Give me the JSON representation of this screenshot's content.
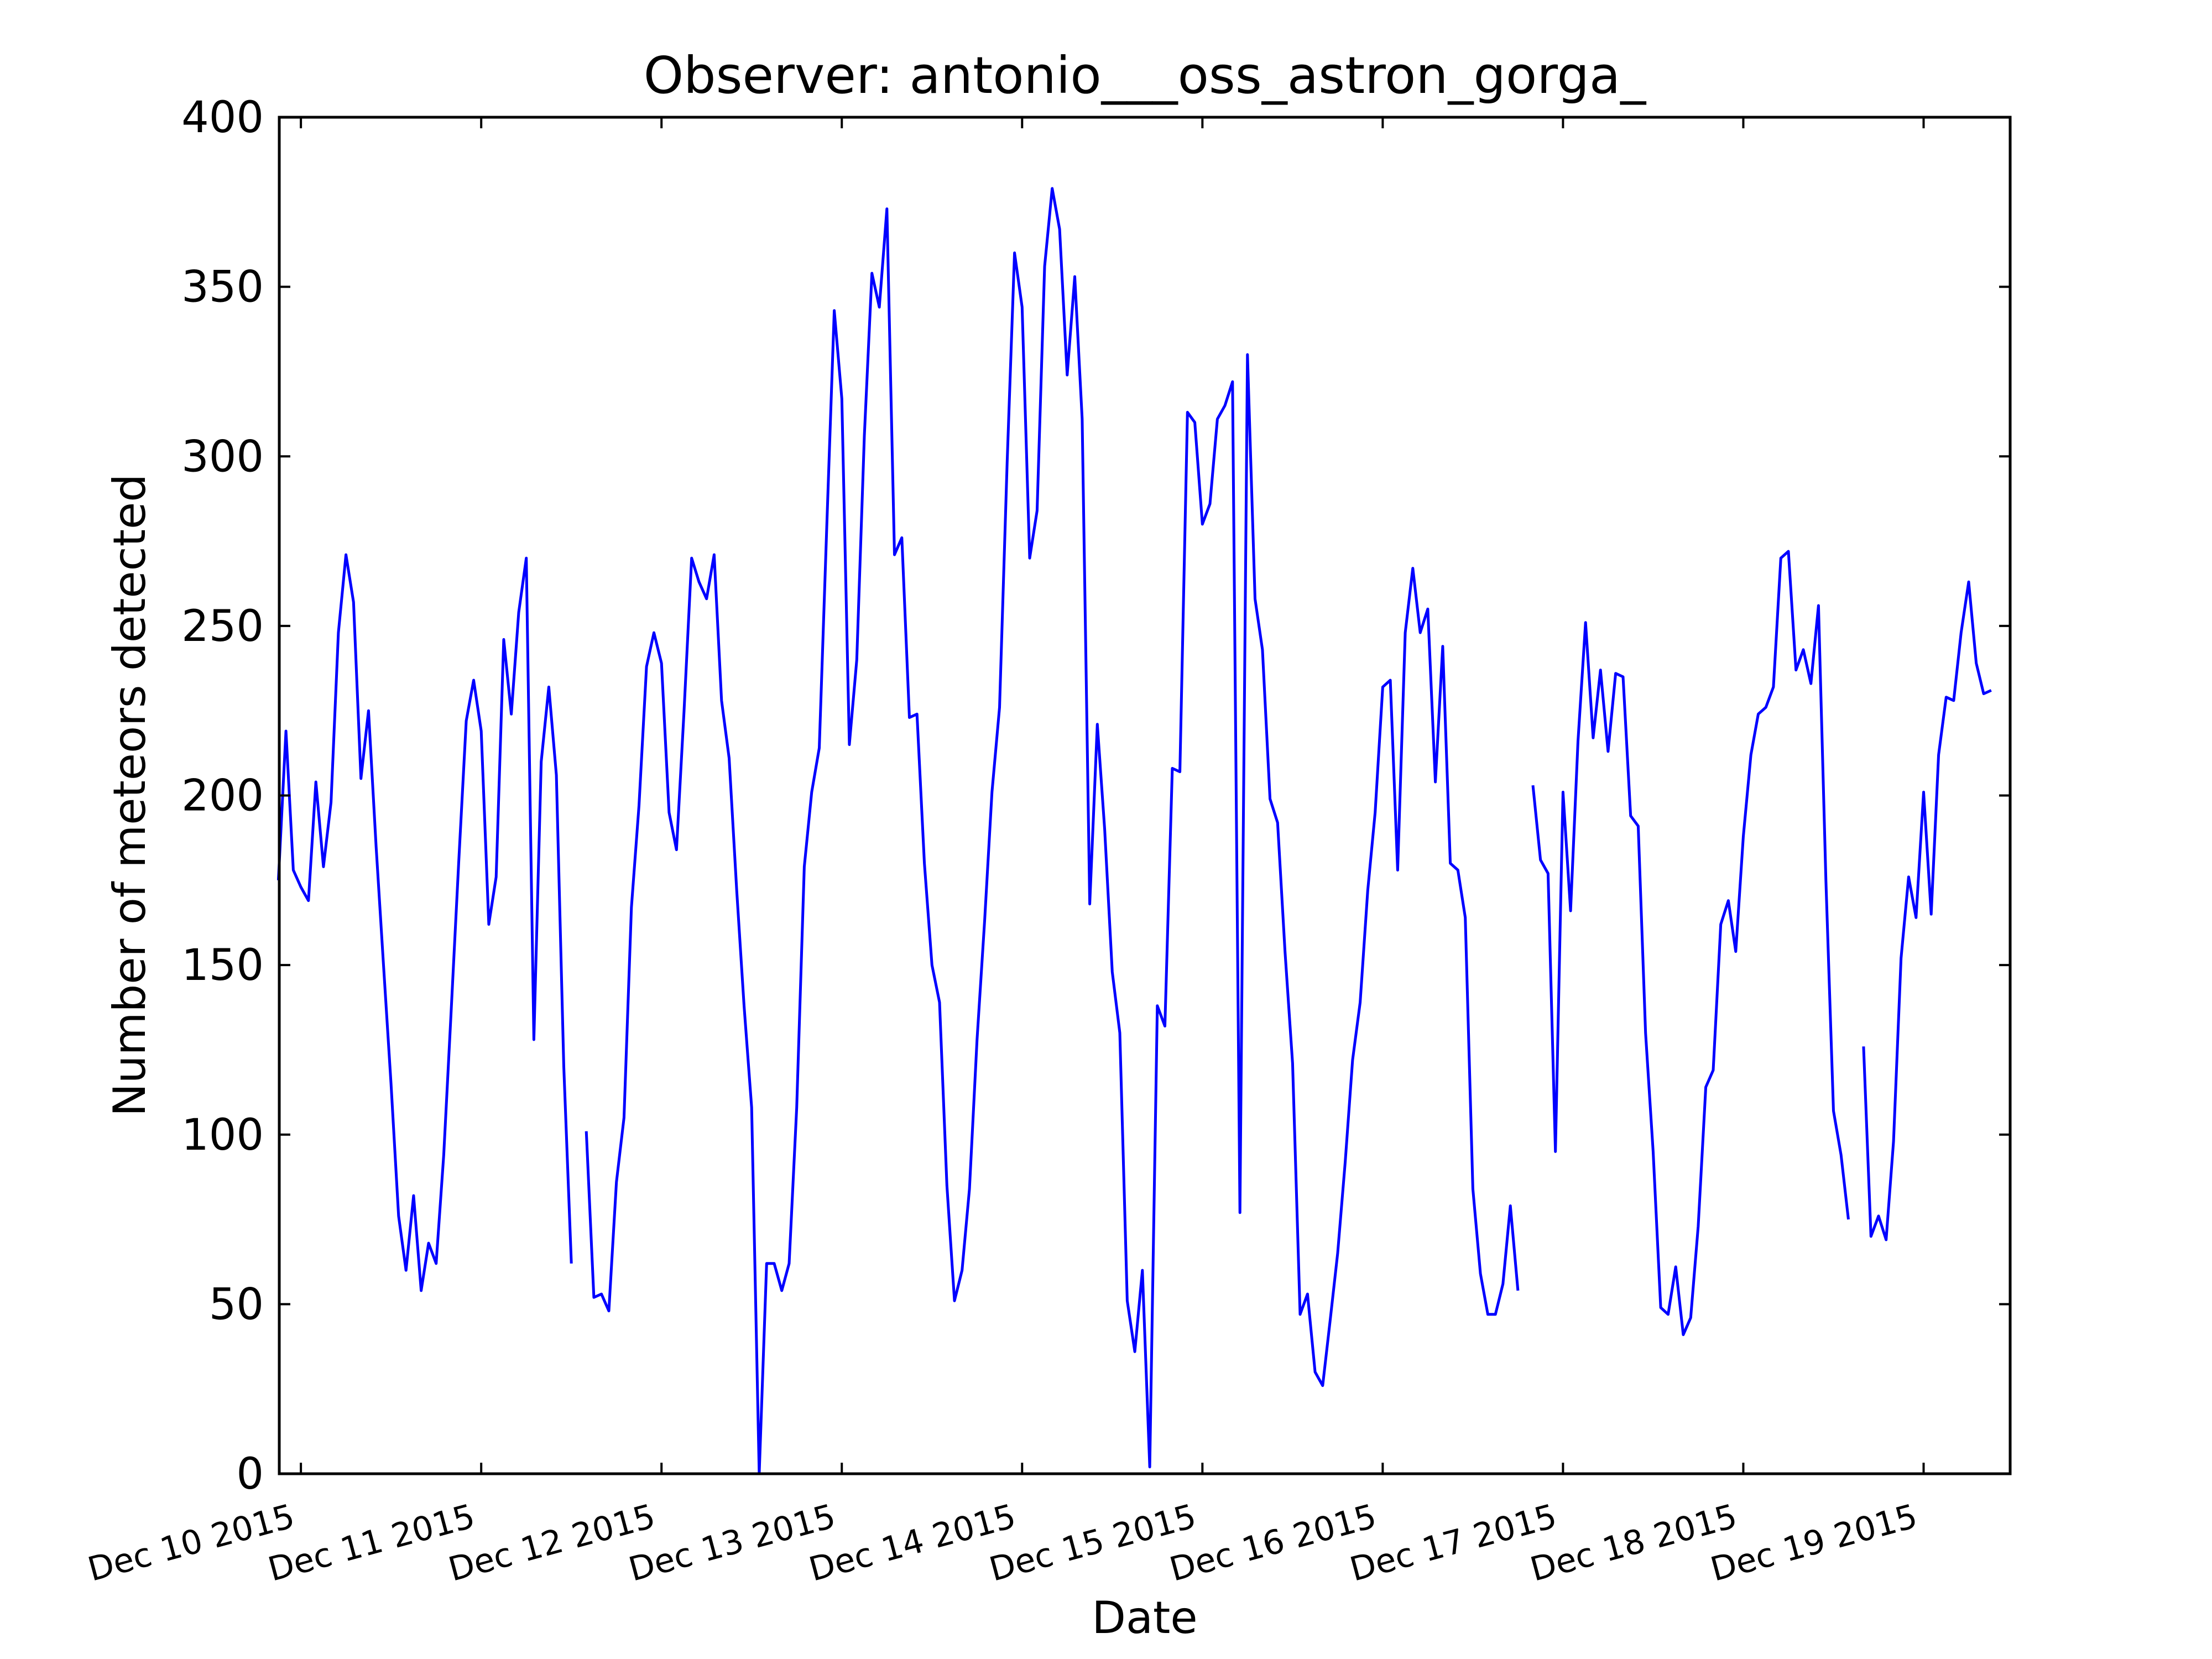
{
  "chart_data": {
    "type": "line",
    "title": "Observer: antonio___oss_astron_gorga_",
    "xlabel": "Date",
    "ylabel": "Number of meteors detected",
    "x_start": "2015-12-10",
    "xlim_days": [
      -0.12,
      9.48
    ],
    "ylim": [
      0,
      400
    ],
    "yticks": [
      0,
      50,
      100,
      150,
      200,
      250,
      300,
      350,
      400
    ],
    "xticks": [
      {
        "day": 0,
        "label": "Dec 10 2015"
      },
      {
        "day": 1,
        "label": "Dec 11 2015"
      },
      {
        "day": 2,
        "label": "Dec 12 2015"
      },
      {
        "day": 3,
        "label": "Dec 13 2015"
      },
      {
        "day": 4,
        "label": "Dec 14 2015"
      },
      {
        "day": 5,
        "label": "Dec 15 2015"
      },
      {
        "day": 6,
        "label": "Dec 16 2015"
      },
      {
        "day": 7,
        "label": "Dec 17 2015"
      },
      {
        "day": 8,
        "label": "Dec 18 2015"
      },
      {
        "day": 9,
        "label": "Dec 19 2015"
      }
    ],
    "grid": false,
    "line_color": "#0000ff",
    "series": [
      {
        "name": "meteors",
        "segments": [
          [
            [
              -0.125,
              175
            ],
            [
              -0.083,
              219
            ],
            [
              -0.042,
              178
            ],
            [
              0.0,
              173
            ],
            [
              0.042,
              169
            ],
            [
              0.083,
              204
            ],
            [
              0.125,
              179
            ],
            [
              0.167,
              198
            ],
            [
              0.208,
              248
            ],
            [
              0.25,
              271
            ],
            [
              0.292,
              257
            ],
            [
              0.333,
              205
            ],
            [
              0.375,
              225
            ],
            [
              0.417,
              185
            ],
            [
              0.458,
              150
            ],
            [
              0.5,
              115
            ],
            [
              0.542,
              76
            ],
            [
              0.583,
              60
            ],
            [
              0.625,
              82
            ],
            [
              0.667,
              54
            ],
            [
              0.708,
              68
            ],
            [
              0.75,
              62
            ],
            [
              0.792,
              94
            ],
            [
              0.833,
              136
            ],
            [
              0.875,
              180
            ],
            [
              0.917,
              222
            ],
            [
              0.958,
              234
            ],
            [
              1.0,
              219
            ],
            [
              1.042,
              162
            ],
            [
              1.083,
              176
            ],
            [
              1.125,
              246
            ],
            [
              1.167,
              224
            ],
            [
              1.208,
              254
            ],
            [
              1.25,
              270
            ],
            [
              1.292,
              128
            ],
            [
              1.333,
              210
            ],
            [
              1.375,
              232
            ],
            [
              1.417,
              206
            ],
            [
              1.458,
              120
            ],
            [
              1.5,
              62
            ]
          ],
          [
            [
              1.583,
              101
            ],
            [
              1.625,
              52
            ],
            [
              1.667,
              53
            ],
            [
              1.708,
              48
            ],
            [
              1.75,
              86
            ],
            [
              1.792,
              105
            ],
            [
              1.833,
              167
            ],
            [
              1.875,
              197
            ],
            [
              1.917,
              238
            ],
            [
              1.958,
              248
            ],
            [
              2.0,
              239
            ],
            [
              2.042,
              195
            ],
            [
              2.083,
              184
            ],
            [
              2.125,
              225
            ],
            [
              2.167,
              270
            ],
            [
              2.208,
              263
            ],
            [
              2.25,
              258
            ],
            [
              2.292,
              271
            ],
            [
              2.333,
              228
            ],
            [
              2.375,
              211
            ],
            [
              2.417,
              172
            ],
            [
              2.458,
              138
            ],
            [
              2.5,
              108
            ],
            [
              2.542,
              0
            ],
            [
              2.583,
              62
            ],
            [
              2.625,
              62
            ],
            [
              2.667,
              54
            ],
            [
              2.708,
              62
            ],
            [
              2.75,
              108
            ],
            [
              2.792,
              179
            ],
            [
              2.833,
              201
            ],
            [
              2.875,
              214
            ],
            [
              2.917,
              280
            ],
            [
              2.958,
              343
            ],
            [
              3.0,
              317
            ],
            [
              3.042,
              215
            ],
            [
              3.083,
              240
            ],
            [
              3.125,
              306
            ],
            [
              3.167,
              354
            ],
            [
              3.208,
              344
            ],
            [
              3.25,
              373
            ],
            [
              3.292,
              271
            ],
            [
              3.333,
              276
            ],
            [
              3.375,
              223
            ],
            [
              3.417,
              224
            ],
            [
              3.458,
              180
            ],
            [
              3.5,
              150
            ],
            [
              3.542,
              139
            ],
            [
              3.583,
              85
            ],
            [
              3.625,
              51
            ],
            [
              3.667,
              60
            ],
            [
              3.708,
              84
            ],
            [
              3.75,
              128
            ],
            [
              3.792,
              163
            ],
            [
              3.833,
              201
            ],
            [
              3.875,
              226
            ],
            [
              3.917,
              298
            ],
            [
              3.958,
              360
            ],
            [
              4.0,
              344
            ],
            [
              4.042,
              270
            ],
            [
              4.083,
              284
            ],
            [
              4.125,
              356
            ],
            [
              4.167,
              379
            ],
            [
              4.208,
              367
            ],
            [
              4.25,
              324
            ],
            [
              4.292,
              353
            ],
            [
              4.333,
              311
            ],
            [
              4.375,
              168
            ],
            [
              4.417,
              221
            ],
            [
              4.458,
              190
            ],
            [
              4.5,
              148
            ],
            [
              4.542,
              130
            ],
            [
              4.583,
              51
            ],
            [
              4.625,
              36
            ],
            [
              4.667,
              60
            ],
            [
              4.708,
              2
            ],
            [
              4.75,
              138
            ],
            [
              4.792,
              132
            ],
            [
              4.833,
              208
            ],
            [
              4.875,
              207
            ],
            [
              4.917,
              313
            ],
            [
              4.958,
              310
            ],
            [
              5.0,
              280
            ],
            [
              5.042,
              286
            ],
            [
              5.083,
              311
            ],
            [
              5.125,
              315
            ],
            [
              5.167,
              322
            ],
            [
              5.208,
              77
            ],
            [
              5.25,
              330
            ],
            [
              5.292,
              258
            ],
            [
              5.333,
              243
            ],
            [
              5.375,
              199
            ],
            [
              5.417,
              192
            ],
            [
              5.458,
              154
            ],
            [
              5.5,
              121
            ],
            [
              5.542,
              47
            ],
            [
              5.583,
              53
            ],
            [
              5.625,
              30
            ],
            [
              5.667,
              26
            ],
            [
              5.708,
              45
            ],
            [
              5.75,
              65
            ],
            [
              5.792,
              92
            ],
            [
              5.833,
              122
            ],
            [
              5.875,
              139
            ],
            [
              5.917,
              172
            ],
            [
              5.958,
              195
            ],
            [
              6.0,
              232
            ],
            [
              6.042,
              234
            ],
            [
              6.083,
              178
            ],
            [
              6.125,
              248
            ],
            [
              6.167,
              267
            ],
            [
              6.208,
              248
            ],
            [
              6.25,
              255
            ],
            [
              6.292,
              204
            ],
            [
              6.333,
              244
            ],
            [
              6.375,
              180
            ],
            [
              6.417,
              178
            ],
            [
              6.458,
              164
            ],
            [
              6.5,
              84
            ],
            [
              6.542,
              59
            ],
            [
              6.583,
              47
            ],
            [
              6.625,
              47
            ],
            [
              6.667,
              56
            ],
            [
              6.708,
              79
            ],
            [
              6.75,
              54
            ]
          ],
          [
            [
              6.833,
              203
            ],
            [
              6.875,
              181
            ],
            [
              6.917,
              177
            ],
            [
              6.958,
              95
            ],
            [
              7.0,
              201
            ],
            [
              7.042,
              166
            ],
            [
              7.083,
              216
            ],
            [
              7.125,
              251
            ],
            [
              7.167,
              217
            ],
            [
              7.208,
              237
            ],
            [
              7.25,
              213
            ],
            [
              7.292,
              236
            ],
            [
              7.333,
              235
            ],
            [
              7.375,
              194
            ],
            [
              7.417,
              191
            ],
            [
              7.458,
              130
            ],
            [
              7.5,
              95
            ],
            [
              7.542,
              49
            ],
            [
              7.583,
              47
            ],
            [
              7.625,
              61
            ],
            [
              7.667,
              41
            ],
            [
              7.708,
              46
            ],
            [
              7.75,
              73
            ],
            [
              7.792,
              114
            ],
            [
              7.833,
              119
            ],
            [
              7.875,
              162
            ],
            [
              7.917,
              169
            ],
            [
              7.958,
              154
            ],
            [
              8.0,
              188
            ],
            [
              8.042,
              212
            ],
            [
              8.083,
              224
            ],
            [
              8.125,
              226
            ],
            [
              8.167,
              232
            ],
            [
              8.208,
              270
            ],
            [
              8.25,
              272
            ],
            [
              8.292,
              237
            ],
            [
              8.333,
              243
            ],
            [
              8.375,
              233
            ],
            [
              8.417,
              256
            ],
            [
              8.458,
              175
            ],
            [
              8.5,
              107
            ],
            [
              8.542,
              94
            ],
            [
              8.583,
              75
            ]
          ],
          [
            [
              8.667,
              126
            ],
            [
              8.708,
              70
            ],
            [
              8.75,
              76
            ],
            [
              8.792,
              69
            ],
            [
              8.833,
              98
            ],
            [
              8.875,
              152
            ],
            [
              8.917,
              176
            ],
            [
              8.958,
              164
            ],
            [
              9.0,
              201
            ],
            [
              9.042,
              165
            ],
            [
              9.083,
              212
            ],
            [
              9.125,
              229
            ],
            [
              9.167,
              228
            ],
            [
              9.208,
              248
            ],
            [
              9.25,
              263
            ],
            [
              9.292,
              239
            ],
            [
              9.333,
              230
            ],
            [
              9.375,
              231
            ]
          ]
        ]
      }
    ]
  }
}
